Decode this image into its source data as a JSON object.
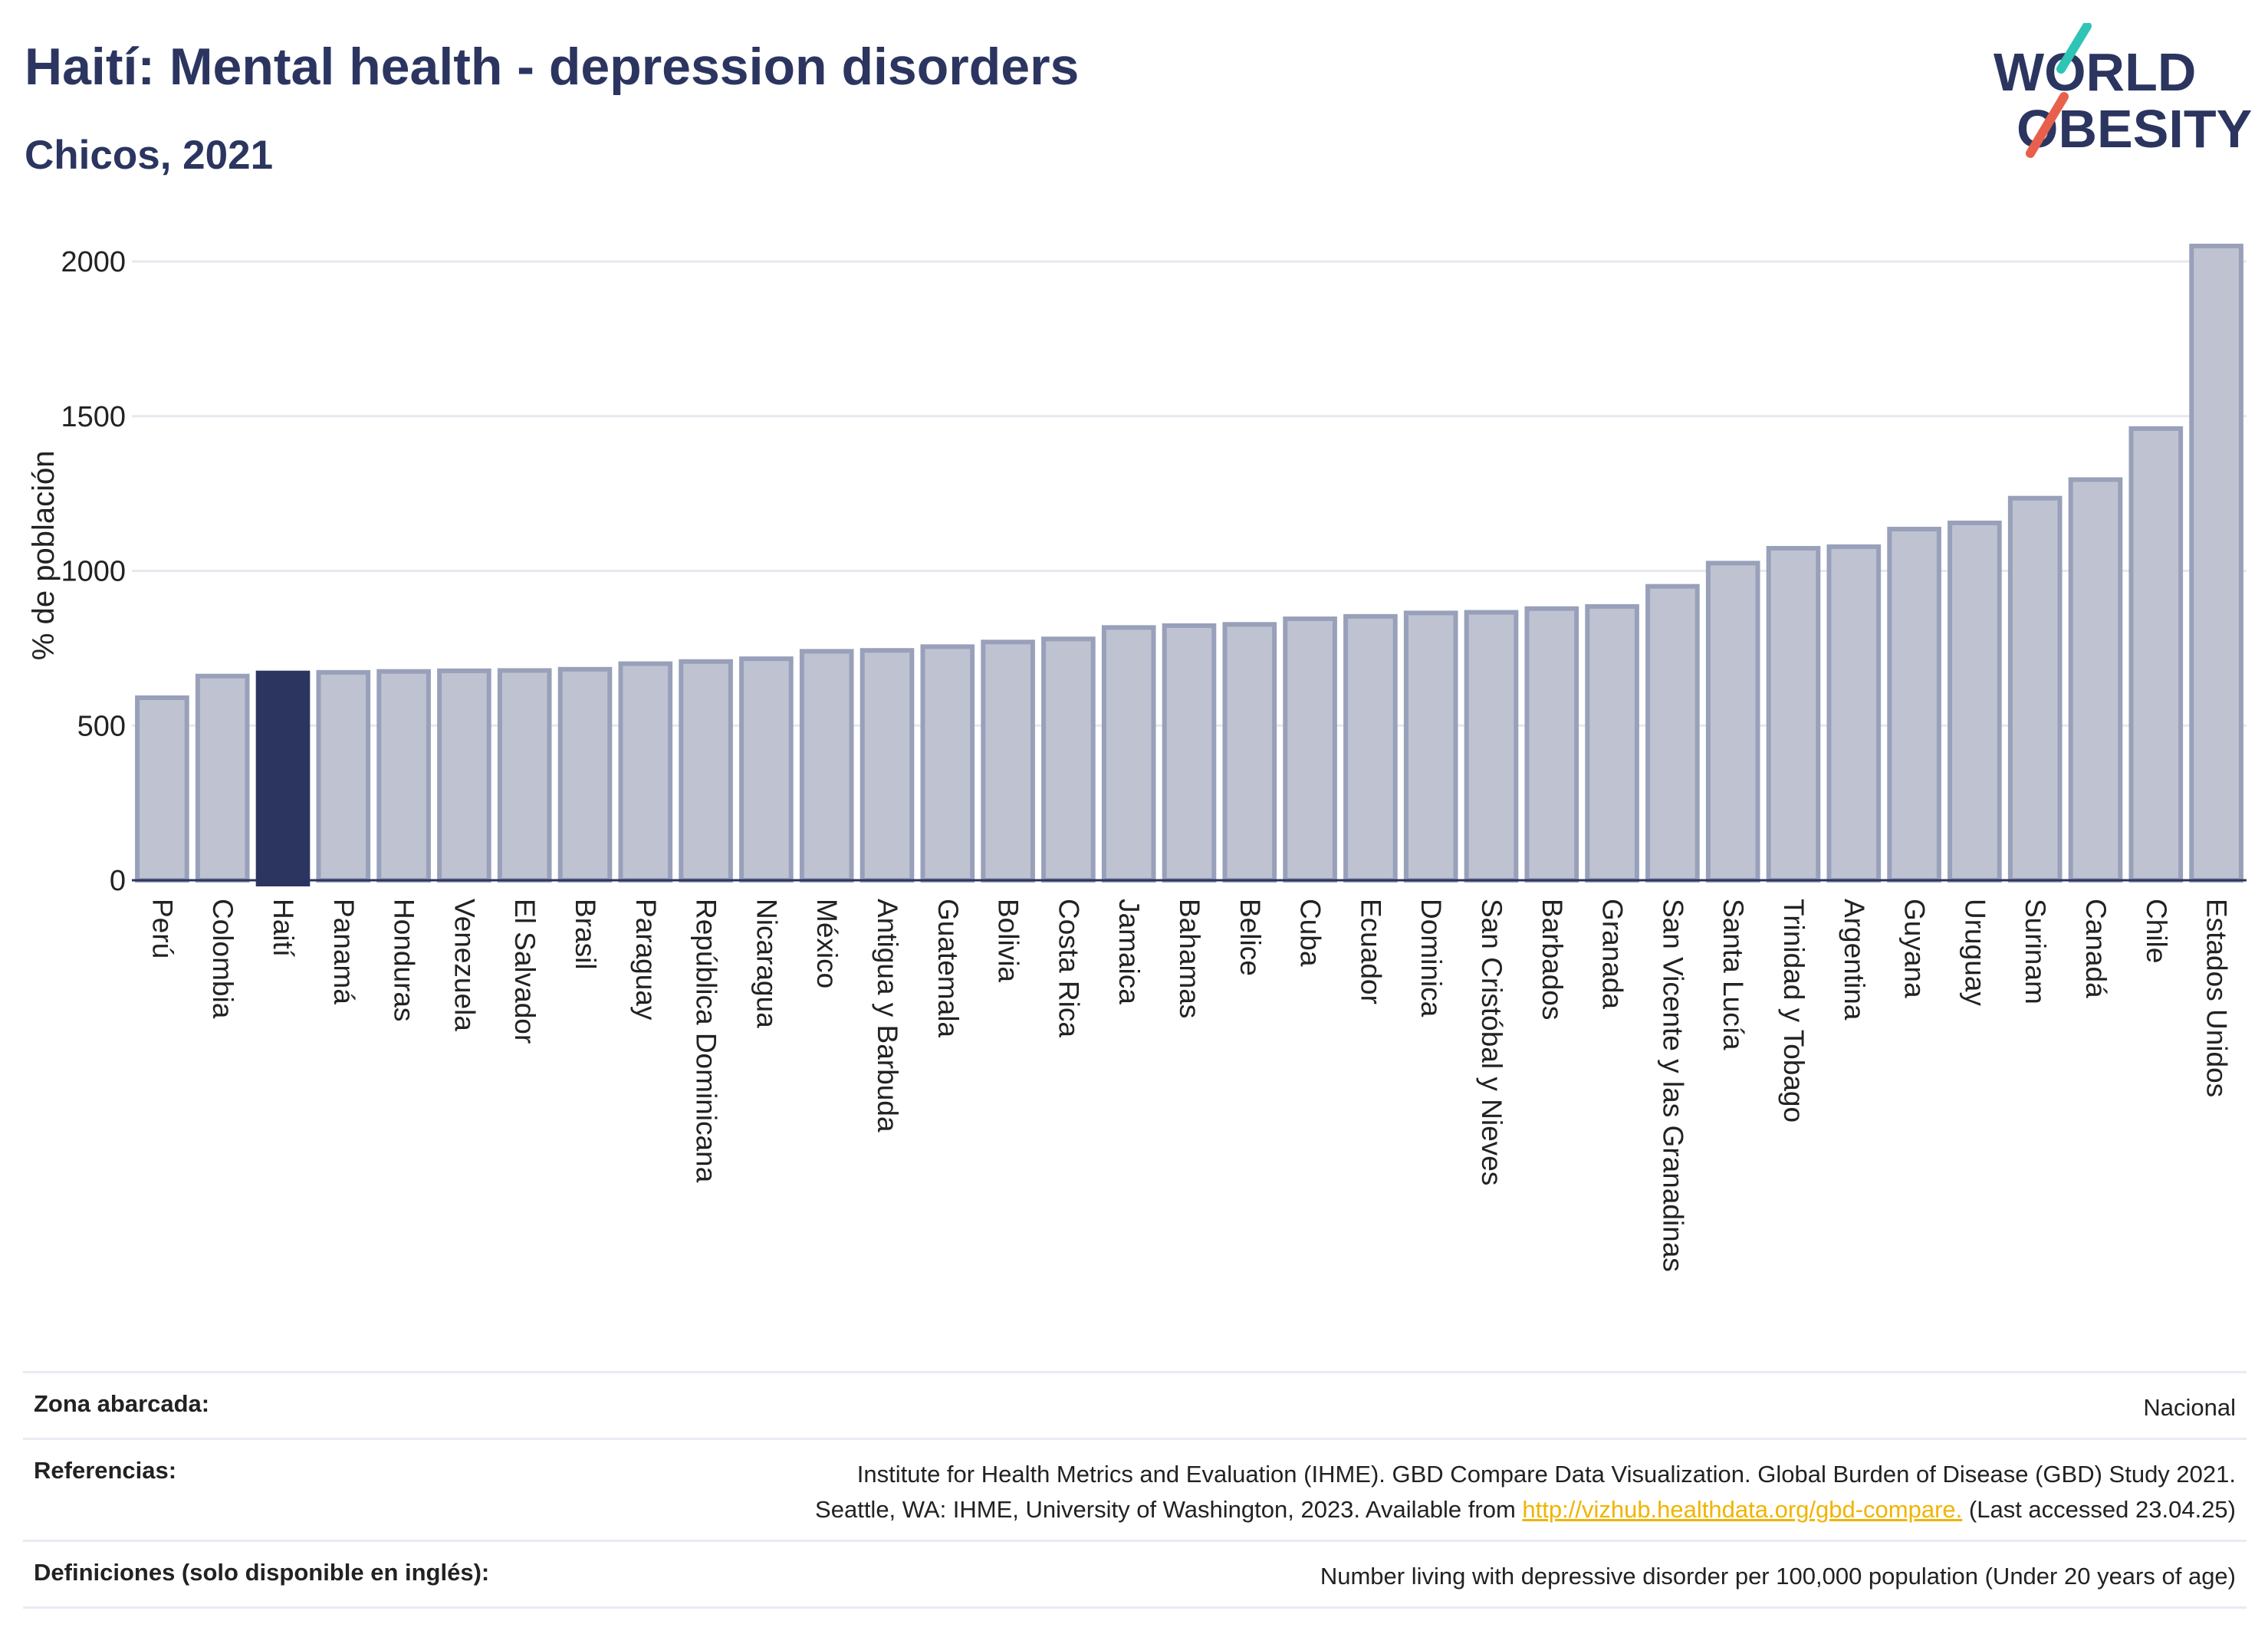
{
  "header": {
    "title": "Haití: Mental health - depression disorders",
    "subtitle": "Chicos, 2021"
  },
  "logo": {
    "line1": "WORLD",
    "line2": "OBESITY",
    "accent_teal": "#2ec4b6",
    "accent_red": "#e8604c"
  },
  "colors": {
    "bar": "#bfc3d1",
    "bar_stroke": "#98a0ba",
    "highlight": "#2b3560",
    "grid": "#e6e8f0"
  },
  "chart_data": {
    "type": "bar",
    "title": "Haití: Mental health - depression disorders",
    "subtitle": "Chicos, 2021",
    "ylabel": "% de población",
    "ylim": [
      0,
      2150
    ],
    "yticks": [
      0,
      500,
      1000,
      1500,
      2000
    ],
    "highlight": "Haití",
    "categories": [
      "Perú",
      "Colombia",
      "Haití",
      "Panamá",
      "Honduras",
      "Venezuela",
      "El Salvador",
      "Brasil",
      "Paraguay",
      "República Dominicana",
      "Nicaragua",
      "México",
      "Antigua y Barbuda",
      "Guatemala",
      "Bolivia",
      "Costa Rica",
      "Jamaica",
      "Bahamas",
      "Belice",
      "Cuba",
      "Ecuador",
      "Dominica",
      "San Cristóbal y Nieves",
      "Barbados",
      "Granada",
      "San Vicente y las Granadinas",
      "Santa Lucía",
      "Trinidad y Tobago",
      "Argentina",
      "Guyana",
      "Uruguay",
      "Surinam",
      "Canadá",
      "Chile",
      "Estados Unidos"
    ],
    "values": [
      590,
      660,
      670,
      672,
      675,
      677,
      678,
      682,
      700,
      707,
      716,
      740,
      743,
      755,
      770,
      780,
      817,
      823,
      827,
      845,
      853,
      864,
      866,
      878,
      885,
      950,
      1025,
      1073,
      1078,
      1135,
      1155,
      1235,
      1295,
      1460,
      2050
    ]
  },
  "footer": {
    "coverage_label": "Zona abarcada:",
    "coverage_value": "Nacional",
    "references_label": "Referencias:",
    "references_line1": "Institute for Health Metrics and Evaluation (IHME). GBD Compare Data Visualization. Global Burden of Disease (GBD) Study 2021.",
    "references_line2_pre": "Seattle, WA: IHME, University of Washington, 2023. Available from ",
    "references_link": "http://vizhub.healthdata.org/gbd-compare.",
    "references_line2_post": " (Last accessed 23.04.25)",
    "definitions_label": "Definiciones (solo disponible en inglés):",
    "definitions_value": "Number living with depressive disorder per 100,000 population (Under 20 years of age)"
  }
}
